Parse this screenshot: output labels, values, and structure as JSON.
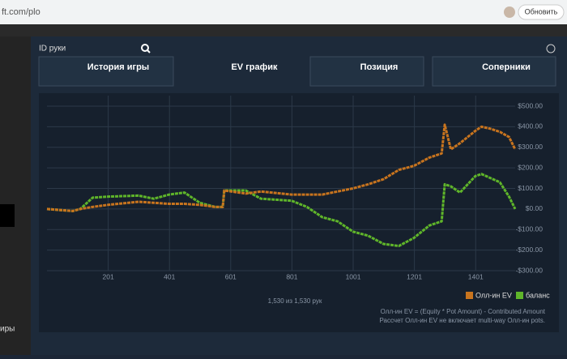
{
  "browser": {
    "url": "ft.com/plo",
    "update_button": "Обновить"
  },
  "sidebar": {
    "item": "иры"
  },
  "search": {
    "placeholder": "ID руки"
  },
  "tabs": [
    "История игры",
    "EV график",
    "Позиция",
    "Соперники"
  ],
  "chart_data": {
    "type": "line",
    "x": [
      1,
      85,
      110,
      150,
      200,
      300,
      350,
      400,
      450,
      500,
      550,
      575,
      580,
      650,
      700,
      800,
      850,
      900,
      950,
      1000,
      1050,
      1100,
      1150,
      1200,
      1250,
      1290,
      1300,
      1320,
      1350,
      1400,
      1420,
      1450,
      1480,
      1510,
      1530
    ],
    "series": [
      {
        "name": "Олл-ин EV",
        "color": "#c8741e",
        "values": [
          0,
          -10,
          0,
          10,
          20,
          35,
          30,
          25,
          25,
          20,
          10,
          10,
          90,
          75,
          85,
          70,
          70,
          70,
          85,
          100,
          120,
          145,
          190,
          210,
          250,
          270,
          410,
          290,
          320,
          380,
          400,
          390,
          375,
          350,
          290
        ]
      },
      {
        "name": "баланс",
        "color": "#5fb52a",
        "values": [
          0,
          -10,
          0,
          55,
          60,
          65,
          50,
          70,
          80,
          30,
          10,
          10,
          90,
          90,
          50,
          40,
          10,
          -40,
          -60,
          -110,
          -130,
          -170,
          -180,
          -140,
          -80,
          -60,
          120,
          110,
          80,
          160,
          170,
          150,
          130,
          60,
          0
        ]
      }
    ],
    "xlim": [
      1,
      1530
    ],
    "xticks": [
      201,
      401,
      601,
      801,
      1001,
      1201,
      1401
    ],
    "ylim": [
      -300,
      500
    ],
    "yticks": [
      {
        "value": 500,
        "label": "$500.00"
      },
      {
        "value": 400,
        "label": "$400.00"
      },
      {
        "value": 300,
        "label": "$300.00"
      },
      {
        "value": 200,
        "label": "$200.00"
      },
      {
        "value": 100,
        "label": "$100.00"
      },
      {
        "value": 0,
        "label": "$0.00"
      },
      {
        "value": -100,
        "label": "-$100.00"
      },
      {
        "value": -200,
        "label": "-$200.00"
      },
      {
        "value": -300,
        "label": "-$300.00"
      }
    ],
    "grid": true,
    "legend": "bottom-right",
    "count_label": "1,530 из 1,530 рук",
    "notes": [
      "Олл-ин EV = (Equity * Pot Amount) - Contributed Amount",
      "Рассчет Олл-ин EV не включает multi-way Олл-ин pots."
    ]
  }
}
